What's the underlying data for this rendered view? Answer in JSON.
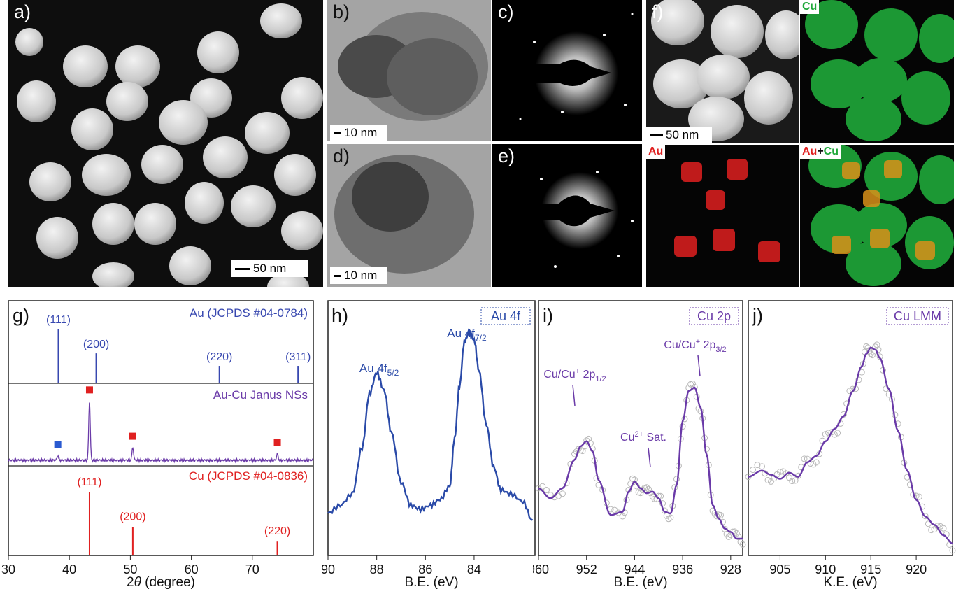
{
  "panels": {
    "a": {
      "label": "a)",
      "scale": "50 nm"
    },
    "b": {
      "label": "b)",
      "scale": "10 nm"
    },
    "c": {
      "label": "c)"
    },
    "d": {
      "label": "d)",
      "scale": "10 nm"
    },
    "e": {
      "label": "e)"
    },
    "f": {
      "label": "f)",
      "scale": "50 nm",
      "cu_label": "Cu",
      "au_label": "Au",
      "overlay_au": "Au",
      "overlay_plus": "+",
      "overlay_cu": "Cu"
    }
  },
  "colors": {
    "au_ref": "#3848b0",
    "cu_ref": "#e02020",
    "janus": "#6a3aa8",
    "au4f": "#2a4aa8",
    "cu_fit": "#6a3aa8",
    "circles": "#b8b8b8",
    "sq_blue": "#2a5ad0",
    "sq_red": "#e02020",
    "cu_map": "#1fa83a",
    "au_map": "#e02020"
  },
  "chart_data": [
    {
      "type": "line",
      "panel_label": "g)",
      "xlabel_prefix": "2",
      "xlabel_theta": "θ",
      "xlabel_rest": " (degree)",
      "xlim": [
        30,
        80
      ],
      "xticks": [
        "30",
        "40",
        "50",
        "60",
        "70"
      ],
      "au_ref": {
        "name": "Au (JCPDS #04-0784)",
        "peaks": [
          {
            "x": 38.2,
            "label": "(111)",
            "h": 1.0
          },
          {
            "x": 44.4,
            "label": "(200)",
            "h": 0.55
          },
          {
            "x": 64.6,
            "label": "(220)",
            "h": 0.32
          },
          {
            "x": 77.5,
            "label": "(311)",
            "h": 0.32
          }
        ]
      },
      "janus": {
        "name": "Au-Cu Janus NSs",
        "peaks": [
          {
            "x": 38.1,
            "h": 0.07,
            "marker": "blue"
          },
          {
            "x": 43.3,
            "h": 0.92,
            "marker": "red"
          },
          {
            "x": 50.4,
            "h": 0.2,
            "marker": "red"
          },
          {
            "x": 74.1,
            "h": 0.1,
            "marker": "red"
          }
        ]
      },
      "cu_ref": {
        "name": "Cu (JCPDS #04-0836)",
        "peaks": [
          {
            "x": 43.3,
            "label": "(111)",
            "h": 1.0
          },
          {
            "x": 50.4,
            "label": "(200)",
            "h": 0.45
          },
          {
            "x": 74.1,
            "label": "(220)",
            "h": 0.22
          }
        ]
      }
    },
    {
      "type": "line",
      "panel_label": "h)",
      "tag": "Au 4f",
      "xlabel": "B.E. (eV)",
      "xlim": [
        90,
        81.5
      ],
      "xticks": [
        "90",
        "88",
        "86",
        "84"
      ],
      "peak_labels": [
        {
          "text": "Au 4f",
          "sub": "5/2",
          "x": 87.9
        },
        {
          "text": "Au 4f",
          "sub": "7/2",
          "x": 84.3
        }
      ],
      "x": [
        90,
        89.5,
        89,
        88.6,
        88.3,
        88,
        87.7,
        87.4,
        87,
        86.6,
        86.2,
        85.8,
        85.4,
        85,
        84.8,
        84.6,
        84.4,
        84.2,
        84,
        83.8,
        83.5,
        83.2,
        82.9,
        82.5,
        82,
        81.6
      ],
      "y": [
        0.06,
        0.1,
        0.16,
        0.4,
        0.68,
        0.79,
        0.7,
        0.48,
        0.22,
        0.1,
        0.08,
        0.1,
        0.13,
        0.2,
        0.45,
        0.72,
        0.95,
        1.0,
        0.96,
        0.8,
        0.52,
        0.3,
        0.18,
        0.16,
        0.12,
        0.02
      ]
    },
    {
      "type": "scatter",
      "panel_label": "i)",
      "tag": "Cu 2p",
      "xlabel": "B.E. (eV)",
      "xlim": [
        960,
        926
      ],
      "xticks": [
        "960",
        "952",
        "944",
        "936",
        "928"
      ],
      "annotations": [
        {
          "text": "Cu/Cu",
          "sup": "+",
          "rest": " 2p",
          "sub": "1/2"
        },
        {
          "text": "Cu",
          "sup": "2+",
          "rest": " Sat.",
          "sub": ""
        },
        {
          "text": "Cu/Cu",
          "sup": "+",
          "rest": " 2p",
          "sub": "3/2"
        }
      ],
      "x": [
        960,
        958,
        956,
        954,
        953,
        952,
        951,
        950,
        948,
        946,
        945,
        944,
        943,
        942,
        941,
        940,
        939,
        938,
        937,
        936,
        935,
        934,
        933,
        932,
        931,
        930,
        929,
        928,
        927,
        926
      ],
      "y": [
        0.3,
        0.24,
        0.3,
        0.47,
        0.55,
        0.58,
        0.52,
        0.35,
        0.14,
        0.16,
        0.28,
        0.34,
        0.3,
        0.27,
        0.28,
        0.24,
        0.16,
        0.15,
        0.32,
        0.7,
        0.88,
        0.9,
        0.78,
        0.5,
        0.2,
        0.12,
        0.06,
        0.04,
        0.0,
        0.0
      ]
    },
    {
      "type": "scatter",
      "panel_label": "j)",
      "tag": "Cu LMM",
      "xlabel": "K.E. (eV)",
      "xlim": [
        901.5,
        924
      ],
      "xticks": [
        "905",
        "910",
        "915",
        "920"
      ],
      "x": [
        901.5,
        903,
        904,
        905,
        906,
        907,
        908,
        909,
        910,
        911,
        912,
        913,
        914,
        914.5,
        915,
        915.5,
        916,
        917,
        918,
        919,
        920,
        921,
        922,
        923,
        924
      ],
      "y": [
        0.33,
        0.36,
        0.34,
        0.32,
        0.35,
        0.33,
        0.4,
        0.43,
        0.5,
        0.56,
        0.62,
        0.74,
        0.86,
        0.92,
        0.95,
        0.94,
        0.9,
        0.75,
        0.55,
        0.36,
        0.22,
        0.14,
        0.1,
        0.05,
        0.01
      ]
    }
  ]
}
